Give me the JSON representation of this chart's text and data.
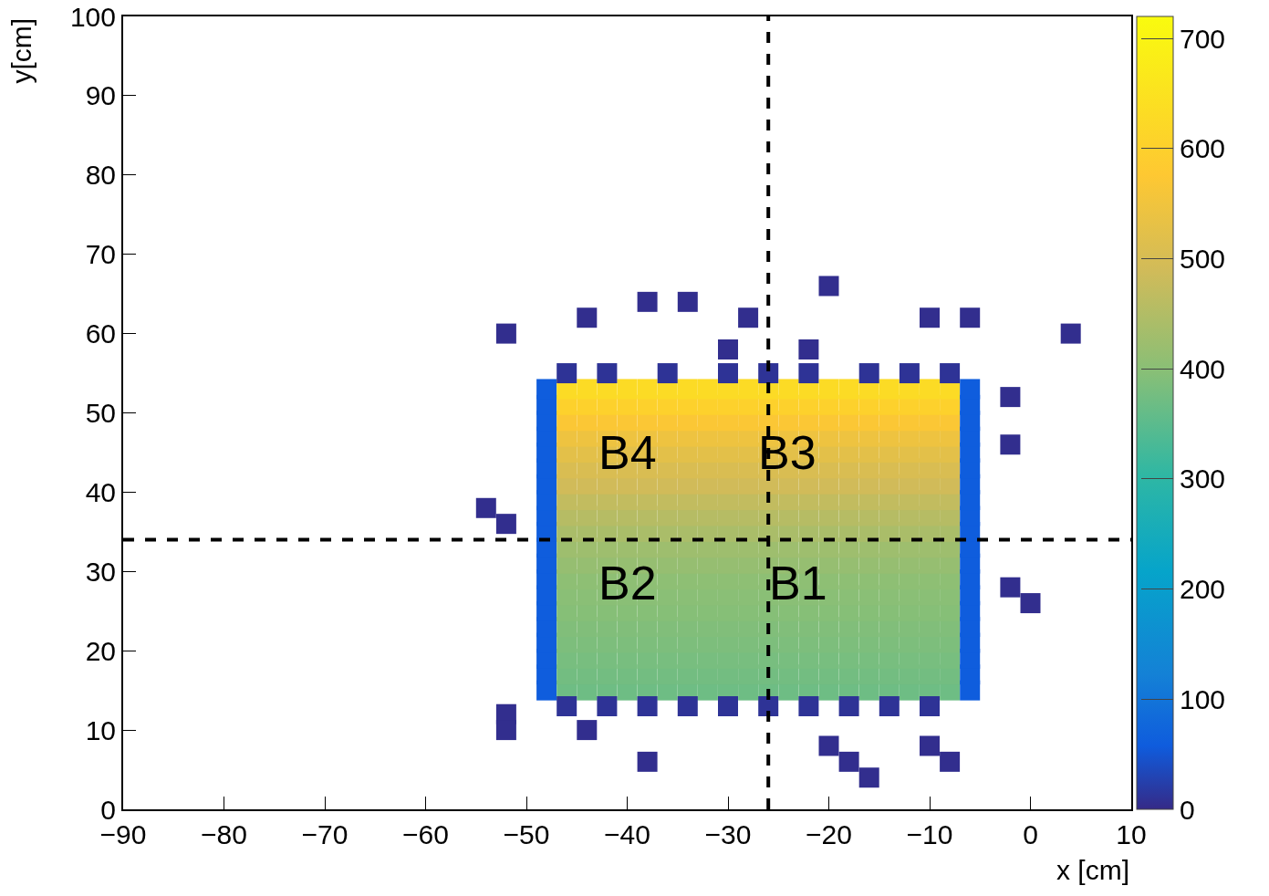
{
  "chart_data": {
    "type": "scatter",
    "xlabel": "x [cm]",
    "ylabel": "y[cm]",
    "marker": "square",
    "xlim": [
      -90,
      10
    ],
    "xticks": [
      -90,
      -80,
      -70,
      -60,
      -50,
      -40,
      -30,
      -20,
      -10,
      0,
      10
    ],
    "ylim": [
      0,
      100
    ],
    "yticks": [
      0,
      10,
      20,
      30,
      40,
      50,
      60,
      70,
      80,
      90,
      100
    ],
    "clim": [
      0,
      720
    ],
    "cticks": [
      0,
      100,
      200,
      300,
      400,
      500,
      600,
      700
    ],
    "grid": false,
    "ref_lines": [
      {
        "axis": "x",
        "value": -26,
        "line_style": "dashed",
        "color": "#000000"
      },
      {
        "axis": "y",
        "value": 34,
        "line_style": "dashed",
        "color": "#000000"
      }
    ],
    "annotations": [
      "B4",
      "B3",
      "B2",
      "B1"
    ],
    "x": [
      -48,
      -46,
      -44,
      -42,
      -40,
      -38,
      -36,
      -34,
      -32,
      -30,
      -28,
      -26,
      -24,
      -22,
      -20,
      -18,
      -16,
      -14,
      -12,
      -10,
      -8,
      -6,
      -48,
      -46,
      -44,
      -42,
      -40,
      -38,
      -36,
      -34,
      -32,
      -30,
      -28,
      -26,
      -24,
      -22,
      -20,
      -18,
      -16,
      -14,
      -12,
      -10,
      -8,
      -6,
      -48,
      -46,
      -44,
      -42,
      -40,
      -38,
      -36,
      -34,
      -32,
      -30,
      -28,
      -26,
      -24,
      -22,
      -20,
      -18,
      -16,
      -14,
      -12,
      -10,
      -8,
      -6,
      -48,
      -46,
      -44,
      -42,
      -40,
      -38,
      -36,
      -34,
      -32,
      -30,
      -28,
      -26,
      -24,
      -22,
      -20,
      -18,
      -16,
      -14,
      -12,
      -10,
      -8,
      -6,
      -48,
      -46,
      -44,
      -42,
      -40,
      -38,
      -36,
      -34,
      -32,
      -30,
      -28,
      -26,
      -24,
      -22,
      -20,
      -18,
      -16,
      -14,
      -12,
      -10,
      -8,
      -6,
      -48,
      -46,
      -44,
      -42,
      -40,
      -38,
      -36,
      -34,
      -32,
      -30,
      -28,
      -26,
      -24,
      -22,
      -20,
      -18,
      -16,
      -14,
      -12,
      -10,
      -8,
      -6,
      -48,
      -46,
      -44,
      -42,
      -40,
      -38,
      -36,
      -34,
      -32,
      -30,
      -28,
      -26,
      -24,
      -22,
      -20,
      -18,
      -16,
      -14,
      -12,
      -10,
      -8,
      -6,
      -48,
      -46,
      -44,
      -42,
      -40,
      -38,
      -36,
      -34,
      -32,
      -30,
      -28,
      -26,
      -24,
      -22,
      -20,
      -18,
      -16,
      -14,
      -12,
      -10,
      -8,
      -6,
      -48,
      -46,
      -44,
      -42,
      -40,
      -38,
      -36,
      -34,
      -32,
      -30,
      -28,
      -26,
      -24,
      -22,
      -20,
      -18,
      -16,
      -14,
      -12,
      -10,
      -8,
      -6,
      -48,
      -46,
      -44,
      -42,
      -40,
      -38,
      -36,
      -34,
      -32,
      -30,
      -28,
      -26,
      -24,
      -22,
      -20,
      -18,
      -16,
      -14,
      -12,
      -10,
      -8,
      -6,
      -48,
      -46,
      -44,
      -42,
      -40,
      -38,
      -36,
      -34,
      -32,
      -30,
      -28,
      -26,
      -24,
      -22,
      -20,
      -18,
      -16,
      -14,
      -12,
      -10,
      -8,
      -6,
      -48,
      -46,
      -44,
      -42,
      -40,
      -38,
      -36,
      -34,
      -32,
      -30,
      -28,
      -26,
      -24,
      -22,
      -20,
      -18,
      -16,
      -14,
      -12,
      -10,
      -8,
      -6,
      -48,
      -46,
      -44,
      -42,
      -40,
      -38,
      -36,
      -34,
      -32,
      -30,
      -28,
      -26,
      -24,
      -22,
      -20,
      -18,
      -16,
      -14,
      -12,
      -10,
      -8,
      -6,
      -48,
      -46,
      -44,
      -42,
      -40,
      -38,
      -36,
      -34,
      -32,
      -30,
      -28,
      -26,
      -24,
      -22,
      -20,
      -18,
      -16,
      -14,
      -12,
      -10,
      -8,
      -6,
      -48,
      -46,
      -44,
      -42,
      -40,
      -38,
      -36,
      -34,
      -32,
      -30,
      -28,
      -26,
      -24,
      -22,
      -20,
      -18,
      -16,
      -14,
      -12,
      -10,
      -8,
      -6,
      -48,
      -46,
      -44,
      -42,
      -40,
      -38,
      -36,
      -34,
      -32,
      -30,
      -28,
      -26,
      -24,
      -22,
      -20,
      -18,
      -16,
      -14,
      -12,
      -10,
      -8,
      -6,
      -48,
      -46,
      -44,
      -42,
      -40,
      -38,
      -36,
      -34,
      -32,
      -30,
      -28,
      -26,
      -24,
      -22,
      -20,
      -18,
      -16,
      -14,
      -12,
      -10,
      -8,
      -6,
      -48,
      -46,
      -44,
      -42,
      -40,
      -38,
      -36,
      -34,
      -32,
      -30,
      -28,
      -26,
      -24,
      -22,
      -20,
      -18,
      -16,
      -14,
      -12,
      -10,
      -8,
      -6,
      -48,
      -46,
      -44,
      -42,
      -40,
      -38,
      -36,
      -34,
      -32,
      -30,
      -28,
      -26,
      -24,
      -22,
      -20,
      -18,
      -16,
      -14,
      -12,
      -10,
      -8,
      -6,
      -48,
      -46,
      -44,
      -42,
      -40,
      -38,
      -36,
      -34,
      -32,
      -30,
      -28,
      -26,
      -24,
      -22,
      -20,
      -18,
      -16,
      -14,
      -12,
      -10,
      -8,
      -6,
      -46,
      -42,
      -38,
      -34,
      -30,
      -26,
      -22,
      -18,
      -14,
      -10,
      -46,
      -42,
      -36,
      -30,
      -26,
      -22,
      -16,
      -12,
      -8,
      -52,
      -44,
      -38,
      -34,
      -28,
      -20,
      -10,
      -6,
      4,
      -30,
      -22,
      -2,
      -2,
      -54,
      -52,
      -2,
      0,
      -52,
      -52,
      -38,
      -44,
      -20,
      -18,
      -16,
      -10,
      -8
    ],
    "values": [
      15,
      15,
      15,
      15,
      15,
      15,
      15,
      15,
      15,
      15,
      15,
      15,
      15,
      15,
      15,
      15,
      15,
      15,
      15,
      15,
      15,
      15,
      17,
      17,
      17,
      17,
      17,
      17,
      17,
      17,
      17,
      17,
      17,
      17,
      17,
      17,
      17,
      17,
      17,
      17,
      17,
      17,
      17,
      17,
      19,
      19,
      19,
      19,
      19,
      19,
      19,
      19,
      19,
      19,
      19,
      19,
      19,
      19,
      19,
      19,
      19,
      19,
      19,
      19,
      19,
      19,
      21,
      21,
      21,
      21,
      21,
      21,
      21,
      21,
      21,
      21,
      21,
      21,
      21,
      21,
      21,
      21,
      21,
      21,
      21,
      21,
      21,
      21,
      23,
      23,
      23,
      23,
      23,
      23,
      23,
      23,
      23,
      23,
      23,
      23,
      23,
      23,
      23,
      23,
      23,
      23,
      23,
      23,
      23,
      23,
      25,
      25,
      25,
      25,
      25,
      25,
      25,
      25,
      25,
      25,
      25,
      25,
      25,
      25,
      25,
      25,
      25,
      25,
      25,
      25,
      25,
      25,
      27,
      27,
      27,
      27,
      27,
      27,
      27,
      27,
      27,
      27,
      27,
      27,
      27,
      27,
      27,
      27,
      27,
      27,
      27,
      27,
      27,
      27,
      29,
      29,
      29,
      29,
      29,
      29,
      29,
      29,
      29,
      29,
      29,
      29,
      29,
      29,
      29,
      29,
      29,
      29,
      29,
      29,
      29,
      29,
      31,
      31,
      31,
      31,
      31,
      31,
      31,
      31,
      31,
      31,
      31,
      31,
      31,
      31,
      31,
      31,
      31,
      31,
      31,
      31,
      31,
      31,
      33,
      33,
      33,
      33,
      33,
      33,
      33,
      33,
      33,
      33,
      33,
      33,
      33,
      33,
      33,
      33,
      33,
      33,
      33,
      33,
      33,
      33,
      35,
      35,
      35,
      35,
      35,
      35,
      35,
      35,
      35,
      35,
      35,
      35,
      35,
      35,
      35,
      35,
      35,
      35,
      35,
      35,
      35,
      35,
      37,
      37,
      37,
      37,
      37,
      37,
      37,
      37,
      37,
      37,
      37,
      37,
      37,
      37,
      37,
      37,
      37,
      37,
      37,
      37,
      37,
      37,
      39,
      39,
      39,
      39,
      39,
      39,
      39,
      39,
      39,
      39,
      39,
      39,
      39,
      39,
      39,
      39,
      39,
      39,
      39,
      39,
      39,
      39,
      41,
      41,
      41,
      41,
      41,
      41,
      41,
      41,
      41,
      41,
      41,
      41,
      41,
      41,
      41,
      41,
      41,
      41,
      41,
      41,
      41,
      41,
      43,
      43,
      43,
      43,
      43,
      43,
      43,
      43,
      43,
      43,
      43,
      43,
      43,
      43,
      43,
      43,
      43,
      43,
      43,
      43,
      43,
      43,
      45,
      45,
      45,
      45,
      45,
      45,
      45,
      45,
      45,
      45,
      45,
      45,
      45,
      45,
      45,
      45,
      45,
      45,
      45,
      45,
      45,
      45,
      47,
      47,
      47,
      47,
      47,
      47,
      47,
      47,
      47,
      47,
      47,
      47,
      47,
      47,
      47,
      47,
      47,
      47,
      47,
      47,
      47,
      47,
      49,
      49,
      49,
      49,
      49,
      49,
      49,
      49,
      49,
      49,
      49,
      49,
      49,
      49,
      49,
      49,
      49,
      49,
      49,
      49,
      49,
      49,
      51,
      51,
      51,
      51,
      51,
      51,
      51,
      51,
      51,
      51,
      51,
      51,
      51,
      51,
      51,
      51,
      51,
      51,
      51,
      51,
      51,
      51,
      53,
      53,
      53,
      53,
      53,
      53,
      53,
      53,
      53,
      53,
      53,
      53,
      53,
      53,
      53,
      53,
      53,
      53,
      53,
      53,
      53,
      53,
      13,
      13,
      13,
      13,
      13,
      13,
      13,
      13,
      13,
      13,
      55,
      55,
      55,
      55,
      55,
      55,
      55,
      55,
      55,
      60,
      62,
      64,
      64,
      62,
      66,
      62,
      62,
      60,
      58,
      58,
      52,
      46,
      38,
      36,
      28,
      26,
      12,
      10,
      6,
      10,
      8,
      6,
      4,
      8,
      6
    ],
    "cvalues": [
      60,
      370,
      370,
      370,
      370,
      370,
      370,
      370,
      370,
      370,
      370,
      370,
      370,
      370,
      370,
      370,
      370,
      370,
      370,
      370,
      370,
      60,
      60,
      375,
      375,
      375,
      375,
      375,
      375,
      375,
      375,
      375,
      375,
      375,
      375,
      375,
      375,
      375,
      375,
      375,
      375,
      375,
      375,
      60,
      60,
      380,
      380,
      380,
      380,
      380,
      380,
      380,
      380,
      380,
      380,
      380,
      380,
      380,
      380,
      380,
      380,
      380,
      380,
      380,
      380,
      60,
      60,
      385,
      385,
      385,
      385,
      385,
      385,
      385,
      385,
      385,
      385,
      385,
      385,
      385,
      385,
      385,
      385,
      385,
      385,
      385,
      385,
      60,
      60,
      390,
      390,
      390,
      390,
      390,
      390,
      390,
      390,
      390,
      390,
      390,
      390,
      390,
      390,
      390,
      390,
      390,
      390,
      390,
      390,
      60,
      60,
      395,
      395,
      395,
      395,
      395,
      395,
      395,
      395,
      395,
      395,
      395,
      395,
      395,
      395,
      395,
      395,
      395,
      395,
      395,
      395,
      60,
      60,
      400,
      400,
      400,
      400,
      400,
      400,
      400,
      400,
      400,
      400,
      400,
      400,
      400,
      400,
      400,
      400,
      400,
      400,
      400,
      400,
      60,
      60,
      405,
      405,
      405,
      405,
      405,
      405,
      405,
      405,
      405,
      405,
      405,
      405,
      405,
      405,
      405,
      405,
      405,
      405,
      405,
      405,
      60,
      60,
      415,
      415,
      415,
      415,
      415,
      415,
      415,
      415,
      415,
      415,
      415,
      415,
      415,
      415,
      415,
      415,
      415,
      415,
      415,
      415,
      60,
      60,
      425,
      425,
      425,
      425,
      425,
      425,
      425,
      425,
      425,
      425,
      425,
      425,
      425,
      425,
      425,
      425,
      425,
      425,
      425,
      425,
      60,
      60,
      440,
      440,
      440,
      440,
      440,
      440,
      440,
      440,
      440,
      440,
      440,
      440,
      440,
      440,
      440,
      440,
      440,
      440,
      440,
      440,
      60,
      60,
      455,
      455,
      455,
      455,
      455,
      455,
      455,
      455,
      455,
      455,
      455,
      455,
      455,
      455,
      455,
      455,
      455,
      455,
      455,
      455,
      60,
      60,
      470,
      470,
      470,
      470,
      470,
      470,
      470,
      470,
      470,
      470,
      470,
      470,
      470,
      470,
      470,
      470,
      470,
      470,
      470,
      470,
      60,
      60,
      490,
      490,
      490,
      490,
      490,
      490,
      490,
      490,
      490,
      490,
      490,
      490,
      490,
      490,
      490,
      490,
      490,
      490,
      490,
      490,
      60,
      60,
      505,
      505,
      505,
      505,
      505,
      505,
      505,
      505,
      505,
      505,
      505,
      505,
      505,
      505,
      505,
      505,
      505,
      505,
      505,
      505,
      60,
      60,
      525,
      525,
      525,
      525,
      525,
      525,
      525,
      525,
      525,
      525,
      525,
      525,
      525,
      525,
      525,
      525,
      525,
      525,
      525,
      525,
      60,
      60,
      545,
      545,
      545,
      545,
      545,
      545,
      545,
      545,
      545,
      545,
      545,
      545,
      545,
      545,
      545,
      545,
      545,
      545,
      545,
      545,
      60,
      60,
      570,
      570,
      570,
      570,
      570,
      570,
      570,
      570,
      570,
      570,
      570,
      570,
      570,
      570,
      570,
      570,
      570,
      570,
      570,
      570,
      60,
      60,
      600,
      600,
      600,
      600,
      600,
      600,
      600,
      600,
      600,
      600,
      600,
      600,
      600,
      600,
      600,
      600,
      600,
      600,
      600,
      600,
      60,
      60,
      630,
      630,
      630,
      630,
      630,
      630,
      630,
      630,
      630,
      630,
      630,
      630,
      630,
      630,
      630,
      630,
      630,
      630,
      630,
      630,
      60,
      10,
      10,
      10,
      10,
      10,
      10,
      10,
      10,
      10,
      10,
      10,
      10,
      10,
      10,
      10,
      10,
      10,
      10,
      10,
      5,
      5,
      5,
      5,
      5,
      5,
      5,
      5,
      5,
      5,
      5,
      5,
      5,
      5,
      5,
      5,
      5,
      5,
      5,
      5,
      5,
      5,
      5,
      5,
      5,
      5
    ]
  }
}
